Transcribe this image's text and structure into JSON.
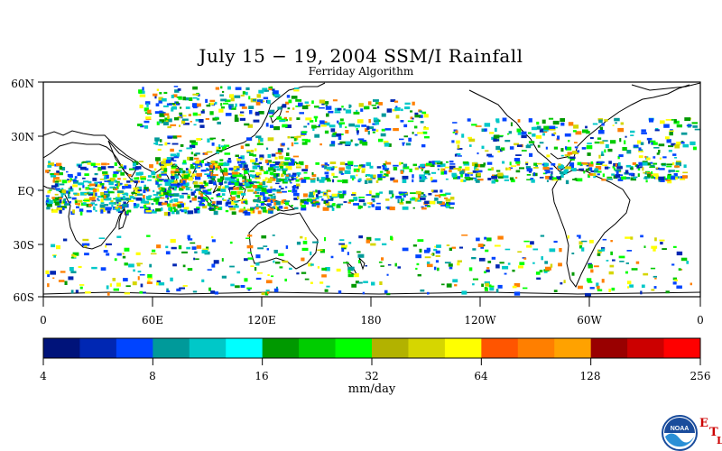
{
  "title": "July 15 − 19, 2004 SSM/I Rainfall",
  "subtitle": "Ferriday Algorithm",
  "lat_labels": [
    "60N",
    "30N",
    "EQ",
    "30S",
    "60S"
  ],
  "lon_labels": [
    "0",
    "60E",
    "120E",
    "180",
    "120W",
    "60W",
    "0"
  ],
  "colorbar": {
    "colors": [
      "#00137a",
      "#0027b3",
      "#0044ff",
      "#009a9a",
      "#00c8c8",
      "#00ffff",
      "#009900",
      "#00cc00",
      "#00ff00",
      "#b2b200",
      "#d6d600",
      "#ffff00",
      "#ff5500",
      "#ff7f00",
      "#ffa200",
      "#990000",
      "#cc0000",
      "#ff0000"
    ],
    "tick_labels": [
      "4",
      "8",
      "16",
      "32",
      "64",
      "128",
      "256"
    ],
    "units": "mm/day"
  },
  "logo": {
    "agency_text": "NOAA",
    "letters": [
      "E",
      "T",
      "L"
    ]
  }
}
